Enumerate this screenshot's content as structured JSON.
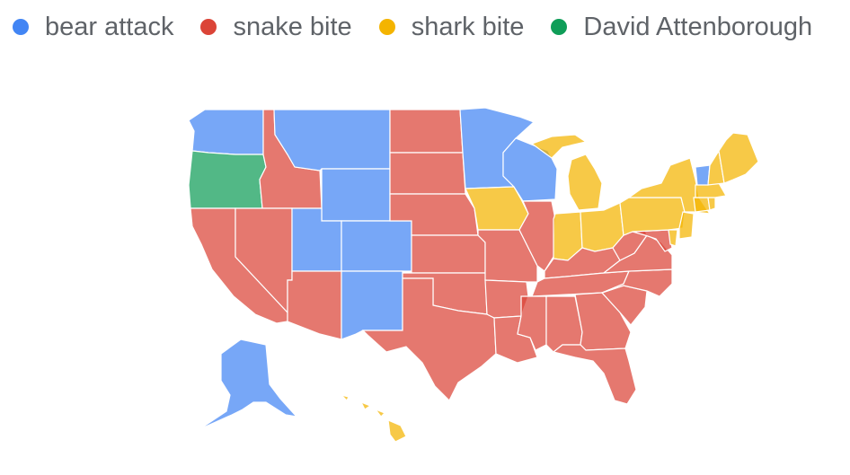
{
  "legend": {
    "items": [
      {
        "label": "bear attack",
        "color": "#4285f4"
      },
      {
        "label": "snake bite",
        "color": "#db4437"
      },
      {
        "label": "shark bite",
        "color": "#f4b400"
      },
      {
        "label": "David Attenborough",
        "color": "#0f9d58"
      }
    ]
  },
  "states": {
    "WA": "bear attack",
    "OR": "David Attenborough",
    "CA": "snake bite",
    "ID": "snake bite",
    "NV": "snake bite",
    "MT": "bear attack",
    "WY": "bear attack",
    "UT": "bear attack",
    "CO": "bear attack",
    "AZ": "snake bite",
    "NM": "bear attack",
    "ND": "snake bite",
    "SD": "snake bite",
    "NE": "snake bite",
    "KS": "snake bite",
    "OK": "snake bite",
    "TX": "snake bite",
    "MN": "bear attack",
    "IA": "shark bite",
    "MO": "snake bite",
    "AR": "snake bite",
    "LA": "snake bite",
    "WI": "bear attack",
    "IL": "snake bite",
    "MI": "shark bite",
    "IN": "shark bite",
    "OH": "shark bite",
    "KY": "snake bite",
    "TN": "snake bite",
    "MS": "snake bite",
    "AL": "snake bite",
    "GA": "snake bite",
    "FL": "snake bite",
    "SC": "snake bite",
    "NC": "snake bite",
    "VA": "snake bite",
    "WV": "snake bite",
    "PA": "shark bite",
    "NY": "shark bite",
    "VT": "bear attack",
    "NH": "shark bite",
    "ME": "shark bite",
    "MA": "shark bite",
    "CT": "shark bite",
    "RI": "shark bite",
    "NJ": "shark bite",
    "DE": "shark bite",
    "MD": "snake bite",
    "AK": "bear attack",
    "HI": "shark bite"
  }
}
